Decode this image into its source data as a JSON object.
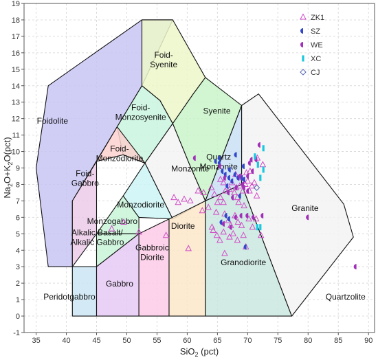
{
  "chart_data": {
    "type": "scatter",
    "subtype": "TAS classification diagram (total alkali vs silica)",
    "xlabel": "SiO2 (pct)",
    "ylabel": "Na2O+K2O(pct)",
    "xlim": [
      33,
      91
    ],
    "ylim": [
      -1,
      19
    ],
    "x_ticks": [
      35,
      40,
      45,
      50,
      55,
      60,
      65,
      70,
      75,
      80,
      85,
      90
    ],
    "y_ticks": [
      -1,
      0,
      1,
      2,
      3,
      4,
      5,
      6,
      7,
      8,
      9,
      10,
      11,
      12,
      13,
      14,
      15,
      16,
      17,
      18,
      19
    ],
    "grid": true,
    "legend_position": "top-right",
    "fields": [
      {
        "name": "Foidolite",
        "fill": "#c9c6f5",
        "poly": [
          [
            37,
            3
          ],
          [
            35,
            9
          ],
          [
            37,
            14
          ],
          [
            52.5,
            18
          ],
          [
            57.6,
            18
          ],
          [
            52.5,
            14
          ],
          [
            48.4,
            11.5
          ],
          [
            41,
            7
          ],
          [
            41,
            3
          ]
        ],
        "label": [
          37.7,
          11.7
        ]
      },
      {
        "name": "Foid-Syenite",
        "fill": "#ecf7c9",
        "poly": [
          [
            52.5,
            18
          ],
          [
            57.6,
            18
          ],
          [
            63,
            14.5
          ],
          [
            61,
            13.5
          ],
          [
            57.6,
            11.7
          ],
          [
            55.5,
            13.1
          ],
          [
            52.5,
            14
          ]
        ],
        "label": [
          56.1,
          15.7
        ]
      },
      {
        "name": "Syenite",
        "fill": "#c9f5c9",
        "poly": [
          [
            57.6,
            11.7
          ],
          [
            61,
            13.5
          ],
          [
            63,
            14.5
          ],
          [
            69,
            12.8
          ],
          [
            63,
            7
          ],
          [
            60.5,
            9.1
          ]
        ],
        "label": [
          64.9,
          12.3
        ]
      },
      {
        "name": "Foid-Monzosyenite",
        "fill": "#c9f5df",
        "poly": [
          [
            52.5,
            14
          ],
          [
            48.4,
            11.5
          ],
          [
            49.4,
            9.8
          ],
          [
            53,
            9.3
          ],
          [
            57.6,
            11.7
          ],
          [
            55.5,
            13.1
          ]
        ],
        "label": [
          52.3,
          12.5
        ]
      },
      {
        "name": "Foid-Monzodiorite",
        "fill": "#fbd1cf",
        "poly": [
          [
            45,
            9.4
          ],
          [
            49.4,
            9.8
          ],
          [
            53,
            9.3
          ],
          [
            48.4,
            11.5
          ]
        ],
        "label": [
          48.8,
          10
        ]
      },
      {
        "name": "Foid-Gabbro",
        "fill": "#eccbea",
        "poly": [
          [
            41,
            3
          ],
          [
            41,
            7
          ],
          [
            45,
            9.4
          ],
          [
            45,
            5
          ]
        ],
        "label": [
          43.1,
          8.5
        ]
      },
      {
        "name": "Monzonite",
        "fill": "#f3f3f3",
        "poly": [
          [
            53,
            9.3
          ],
          [
            57.6,
            11.7
          ],
          [
            60.5,
            9.1
          ],
          [
            63,
            7
          ],
          [
            57.6,
            5.9
          ]
        ],
        "label": [
          60.5,
          8.8
        ]
      },
      {
        "name": "Monzodiorite",
        "fill": "#ccf5f5",
        "poly": [
          [
            49.4,
            7.3
          ],
          [
            52,
            6
          ],
          [
            57.6,
            5.9
          ],
          [
            53,
            9.3
          ]
        ],
        "label": [
          52.3,
          6.6
        ]
      },
      {
        "name": "Monzogabbro",
        "fill": "#c9f5d8",
        "poly": [
          [
            45,
            5
          ],
          [
            49.4,
            7.3
          ],
          [
            52,
            6
          ],
          [
            52,
            5
          ]
        ],
        "label": [
          47.6,
          5.6
        ]
      },
      {
        "name": "Alkalic Basalt/ Alkalic Gabbro",
        "fill": "#c9f5d8",
        "poly": [
          [
            45,
            5
          ],
          [
            52,
            5
          ],
          [
            45,
            3
          ]
        ],
        "label": [
          45.1,
          4.9
        ]
      },
      {
        "name": "Quartz Monzonite",
        "fill": "#c9e0f5",
        "poly": [
          [
            63,
            7
          ],
          [
            69,
            8
          ],
          [
            69,
            12.8
          ]
        ],
        "label": [
          65.2,
          9.5
        ]
      },
      {
        "name": "Peridotgabbro",
        "fill": "#cbe6f5",
        "poly": [
          [
            41,
            0
          ],
          [
            41,
            3
          ],
          [
            45,
            3
          ],
          [
            45,
            0
          ]
        ],
        "label": [
          40.5,
          1
        ]
      },
      {
        "name": "Gabbro",
        "fill": "#e6c9f5",
        "poly": [
          [
            45,
            0
          ],
          [
            45,
            3
          ],
          [
            52,
            5
          ],
          [
            52,
            0
          ]
        ],
        "label": [
          48.8,
          1.8
        ]
      },
      {
        "name": "Gabbroic Diorite",
        "fill": "#fbcbe6",
        "poly": [
          [
            52,
            0
          ],
          [
            52,
            5
          ],
          [
            57,
            5.9
          ],
          [
            57,
            0
          ]
        ],
        "label": [
          54.2,
          4
        ]
      },
      {
        "name": "Diorite",
        "fill": "#fbe6c9",
        "poly": [
          [
            57,
            0
          ],
          [
            57,
            5.9
          ],
          [
            63,
            7
          ],
          [
            63,
            0
          ]
        ],
        "label": [
          59.3,
          5.3
        ]
      },
      {
        "name": "Granodiorite",
        "fill": "#cbe7e1",
        "poly": [
          [
            63,
            0
          ],
          [
            63,
            7
          ],
          [
            69,
            8
          ],
          [
            77.3,
            0
          ]
        ],
        "label": [
          69.3,
          3.1
        ]
      },
      {
        "name": "Granite",
        "fill": "#f3f3f3",
        "poly": [
          [
            69,
            8
          ],
          [
            77.3,
            0
          ],
          [
            87.5,
            4.8
          ],
          [
            85.9,
            6.8
          ],
          [
            71.8,
            13.5
          ],
          [
            69,
            12.8
          ]
        ],
        "label": [
          79.5,
          6.4
        ]
      },
      {
        "name": "Quartzolite",
        "fill": "#f3f3f3",
        "poly": [],
        "label": [
          86.2,
          1
        ]
      }
    ],
    "label_lines": {
      "Foid-Syenite": [
        "Foid-",
        "Syenite"
      ],
      "Foid-Monzosyenite": [
        "Foid-",
        "Monzosyenite"
      ],
      "Foid-Monzodiorite": [
        "Foid-",
        "Monzodiorite"
      ],
      "Foid-Gabbro": [
        "Foid-",
        "Gabbro"
      ],
      "Quartz Monzonite": [
        "Quartz",
        "Monzonite"
      ],
      "Alkalic Basalt/ Alkalic Gabbro": [
        "Alkalic Basalt/",
        "Alkalic Gabbro"
      ],
      "Gabbroic Diorite": [
        "Gabbroic",
        "Diorite"
      ]
    },
    "series": [
      {
        "name": "ZK1",
        "marker": "triangle-open",
        "color": "#d04cc6",
        "points": [
          [
            52,
            5.1
          ],
          [
            56.5,
            4.9
          ],
          [
            49.5,
            5.7
          ],
          [
            47.5,
            5.3
          ],
          [
            57.8,
            7.2
          ],
          [
            58.5,
            6.9
          ],
          [
            59.5,
            7.1
          ],
          [
            60.5,
            7
          ],
          [
            60.2,
            4.1
          ],
          [
            61.8,
            7.6
          ],
          [
            62.7,
            7.5
          ],
          [
            63.5,
            6.6
          ],
          [
            64,
            7.8
          ],
          [
            64.5,
            7.4
          ],
          [
            64.8,
            6.3
          ],
          [
            65,
            6.9
          ],
          [
            65.5,
            7.2
          ],
          [
            65.5,
            8.3
          ],
          [
            66,
            8.1
          ],
          [
            66.3,
            7.6
          ],
          [
            66,
            6.9
          ],
          [
            67,
            7.7
          ],
          [
            67.4,
            8.1
          ],
          [
            67.8,
            7.5
          ],
          [
            68,
            8.6
          ],
          [
            68.1,
            7.8
          ],
          [
            68.3,
            7.2
          ],
          [
            68.7,
            7.9
          ],
          [
            69,
            8.4
          ],
          [
            69.2,
            7.6
          ],
          [
            69.6,
            8
          ],
          [
            70,
            8.2
          ],
          [
            70.3,
            7.6
          ],
          [
            70.7,
            7.9
          ],
          [
            71.1,
            8.1
          ],
          [
            71.5,
            7.3
          ],
          [
            66.2,
            6.2
          ],
          [
            66.8,
            5.8
          ],
          [
            67.2,
            5.5
          ],
          [
            67.9,
            6.1
          ],
          [
            68.4,
            5.7
          ],
          [
            69,
            5.5
          ],
          [
            69.4,
            6.7
          ],
          [
            70.2,
            5.9
          ],
          [
            70.8,
            5.4
          ],
          [
            71.4,
            5.9
          ],
          [
            64.1,
            5.4
          ],
          [
            64.9,
            4.9
          ],
          [
            65.4,
            4.6
          ],
          [
            66,
            5.1
          ],
          [
            67,
            4.8
          ],
          [
            67.6,
            5
          ],
          [
            68.3,
            4.6
          ],
          [
            69.3,
            4.9
          ],
          [
            66.2,
            3.8
          ],
          [
            69.7,
            4.2
          ],
          [
            72.2,
            4.9
          ],
          [
            64.3,
            5.2
          ],
          [
            62.5,
            6.4
          ],
          [
            68.5,
            6.9
          ],
          [
            69.8,
            8.7
          ],
          [
            70.4,
            8.8
          ],
          [
            71.6,
            9.6
          ],
          [
            72.5,
            9.2
          ]
        ]
      },
      {
        "name": "SZ",
        "marker": "half-circle",
        "color": "#3248c8",
        "points": [
          [
            65.5,
            9.3
          ],
          [
            66,
            8.8
          ],
          [
            66.5,
            8.6
          ],
          [
            67.1,
            8.4
          ],
          [
            66.8,
            7.9
          ],
          [
            67.6,
            8.2
          ],
          [
            68.1,
            8.6
          ],
          [
            68.6,
            8.4
          ],
          [
            67.2,
            8.9
          ],
          [
            68.2,
            9.8
          ],
          [
            69.2,
            8.4
          ],
          [
            69.6,
            8.3
          ],
          [
            65.8,
            5.7
          ],
          [
            66.6,
            6.1
          ],
          [
            67.1,
            5.9
          ],
          [
            69.8,
            4.2
          ],
          [
            68.9,
            7.3
          ],
          [
            64.9,
            9.4
          ],
          [
            65.5,
            9.6
          ],
          [
            69.5,
            9.1
          ]
        ]
      },
      {
        "name": "WE",
        "marker": "half-circle",
        "color": "#a030b8",
        "points": [
          [
            61.4,
            9.6
          ],
          [
            65.6,
            9.1
          ],
          [
            66.4,
            8.4
          ],
          [
            67,
            7.5
          ],
          [
            67.7,
            7.2
          ],
          [
            68.3,
            7.8
          ],
          [
            68.9,
            8.5
          ],
          [
            69.4,
            8
          ],
          [
            70.2,
            8.5
          ],
          [
            70.5,
            9.3
          ],
          [
            70.8,
            9.5
          ],
          [
            71,
            8.8
          ],
          [
            71.6,
            9.5
          ],
          [
            72.1,
            10.4
          ],
          [
            70.2,
            7.6
          ],
          [
            69.6,
            7.8
          ],
          [
            66.2,
            5.6
          ],
          [
            67.4,
            5.4
          ],
          [
            68.2,
            6
          ],
          [
            69.1,
            6.1
          ],
          [
            70.1,
            6.1
          ],
          [
            71.1,
            6
          ],
          [
            72.6,
            6.1
          ],
          [
            80.1,
            6
          ],
          [
            88,
            3
          ]
        ]
      },
      {
        "name": "XC",
        "marker": "bar",
        "color": "#18c8e0",
        "points": [
          [
            71.2,
            9.7
          ],
          [
            71.7,
            9.2
          ],
          [
            72.6,
            10.2
          ],
          [
            72.1,
            8.4
          ],
          [
            72.6,
            8.9
          ],
          [
            72.1,
            5.4
          ],
          [
            71.6,
            5.4
          ]
        ]
      },
      {
        "name": "CJ",
        "marker": "diamond-open",
        "color": "#5868b0",
        "points": [
          [
            71.5,
            7.8
          ]
        ]
      }
    ]
  }
}
